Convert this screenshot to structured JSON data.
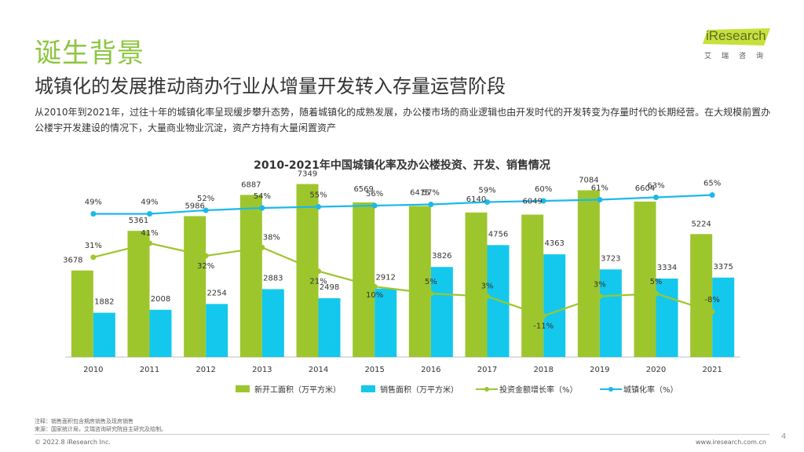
{
  "header": {
    "section_title": "诞生背景",
    "subtitle": "城镇化的发展推动商办行业从增量开发转入存量运营阶段",
    "description": "从2010年到2021年，过往十年的城镇化率呈现缓步攀升态势，随着城镇化的成熟发展，办公楼市场的商业逻辑也由开发时代的开发转变为存量时代的长期经营。在大规模前置办公楼宇开发建设的情况下，大量商业物业沉淀，资产方持有大量闲置资产"
  },
  "logo": {
    "text": "iResearch",
    "subtext": "艾瑞咨询",
    "color": "#c8e03a"
  },
  "chart_data": {
    "type": "bar",
    "title": "2010-2021年中国城镇化率及办公楼投资、开发、销售情况",
    "categories": [
      "2010",
      "2011",
      "2012",
      "2013",
      "2014",
      "2015",
      "2016",
      "2017",
      "2018",
      "2019",
      "2020",
      "2021"
    ],
    "series": [
      {
        "name": "新开工面积（万平方米）",
        "kind": "bar",
        "color": "#9dc62d",
        "values": [
          3678,
          5361,
          5986,
          6887,
          7349,
          6569,
          6415,
          6140,
          6049,
          7084,
          6604,
          5224
        ]
      },
      {
        "name": "销售面积（万平方米）",
        "kind": "bar",
        "color": "#13c8ec",
        "values": [
          1882,
          2008,
          2254,
          2883,
          2498,
          2912,
          3826,
          4756,
          4363,
          3723,
          3334,
          3375
        ]
      },
      {
        "name": "投资金额增长率（%）",
        "kind": "line",
        "color": "#9dc62d",
        "values": [
          31,
          41,
          32,
          38,
          21,
          10,
          5,
          3,
          -11,
          3,
          5,
          -8
        ]
      },
      {
        "name": "城镇化率（%）",
        "kind": "line",
        "color": "#1cb8ea",
        "values": [
          49,
          49,
          52,
          54,
          55,
          56,
          57,
          59,
          60,
          61,
          63,
          65
        ]
      }
    ],
    "value_labels": {
      "new_construction": [
        "3678",
        "5361",
        "5986",
        "6887",
        "7349",
        "6569",
        "6415",
        "6140",
        "6049",
        "7084",
        "6604",
        "5224"
      ],
      "sales": [
        "1882",
        "2008",
        "2254",
        "2883",
        "2498",
        "2912",
        "3826",
        "4756",
        "4363",
        "3723",
        "3334",
        "3375"
      ],
      "investment_growth": [
        "31%",
        "41%",
        "32%",
        "38%",
        "21%",
        "10%",
        "5%",
        "3%",
        "-11%",
        "3%",
        "5%",
        "-8%"
      ],
      "urbanization": [
        "49%",
        "49%",
        "52%",
        "54%",
        "55%",
        "56%",
        "57%",
        "59%",
        "60%",
        "61%",
        "63%",
        "65%"
      ]
    },
    "bar_ylim": [
      0,
      8000
    ],
    "legend_position": "bottom",
    "grid": false
  },
  "footnotes": {
    "note": "注释：销售面积包含期房销售及现房销售",
    "source": "来源：国家统计局，艾瑞咨询研究院自主研究及绘制。"
  },
  "footer": {
    "copyright": "© 2022.8 iResearch Inc.",
    "website": "www.iresearch.com.cn",
    "page": "4"
  }
}
